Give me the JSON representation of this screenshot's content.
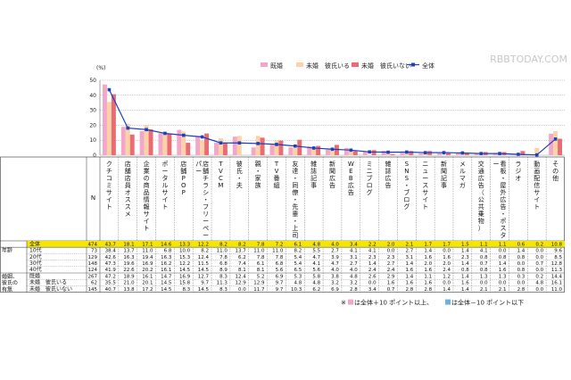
{
  "watermark": "RBBTODAY.COM",
  "chart_data": {
    "type": "bar",
    "title": "",
    "ylabel": "(%)",
    "ylim": [
      0,
      50
    ],
    "yticks": [
      0,
      10,
      20,
      30,
      40,
      50
    ],
    "grid": true,
    "legend_position": "top-right",
    "categories": [
      "クチコミサイト",
      "店舗店員オススメ",
      "企業の商品情報サイト",
      "ポータルサイト",
      "店舗POP",
      "店舗チラシ・フリーペーパー",
      "TVCM",
      "彼氏・夫",
      "親・家族",
      "TV番組",
      "友達・同僚・先輩・上司",
      "雑誌記事",
      "新聞広告",
      "WEB広告",
      "ミニブログ",
      "雑誌広告",
      "SNS・ブログ",
      "ニュースサイト",
      "新聞記事",
      "メルマガ",
      "交通広告（公共乗物）",
      "看板・屋外広告・ポスター",
      "ラジオ",
      "動画配信サイト",
      "その他"
    ],
    "series": [
      {
        "name": "既婚",
        "color": "#f4a6c8",
        "values": [
          47.2,
          18.9,
          16.1,
          14.7,
          16.9,
          12.7,
          8.3,
          12.4,
          5.2,
          6.9,
          5.3,
          5.8,
          3.8,
          4.8,
          2.6,
          2.9,
          1.4,
          1.1,
          1.2,
          1.4,
          1.3,
          1.3,
          0.3,
          0.2,
          14.4
        ]
      },
      {
        "name": "未婚　彼氏いる",
        "color": "#fbd3a6",
        "values": [
          35.5,
          21.0,
          20.1,
          14.5,
          15.8,
          9.7,
          11.3,
          12.9,
          12.9,
          9.7,
          4.8,
          4.8,
          3.2,
          3.2,
          0.0,
          1.6,
          1.6,
          1.6,
          0.0,
          1.6,
          0.0,
          0.0,
          0.0,
          4.8,
          16.1
        ]
      },
      {
        "name": "未婚　彼氏いない",
        "color": "#ec6b72",
        "values": [
          40.7,
          13.8,
          17.2,
          14.5,
          8.3,
          14.5,
          8.3,
          0.0,
          11.7,
          9.7,
          10.3,
          6.2,
          6.9,
          2.8,
          3.4,
          0.7,
          2.8,
          2.8,
          1.4,
          1.4,
          2.1,
          2.1,
          2.8,
          0.0,
          11.0
        ]
      },
      {
        "name": "全体",
        "color": "#1c3fbf",
        "values": [
          43.7,
          18.1,
          17.1,
          14.6,
          13.3,
          12.2,
          8.2,
          8.2,
          7.8,
          7.2,
          6.1,
          4.8,
          4.0,
          3.4,
          2.2,
          2.0,
          2.1,
          1.7,
          1.7,
          1.5,
          1.1,
          1.1,
          0.6,
          0.2,
          10.8
        ]
      }
    ]
  },
  "table": {
    "n_header": "N",
    "groups": [
      {
        "label": "",
        "rows": [
          {
            "label": "全体",
            "n": "474",
            "values": [
              "43.7",
              "18.1",
              "17.1",
              "14.6",
              "13.3",
              "12.2",
              "8.2",
              "8.2",
              "7.8",
              "7.2",
              "6.1",
              "4.8",
              "4.0",
              "3.4",
              "2.2",
              "2.0",
              "2.1",
              "1.7",
              "1.7",
              "1.5",
              "1.1",
              "1.1",
              "0.6",
              "0.2",
              "10.8"
            ]
          }
        ]
      },
      {
        "label": "年齢",
        "rows": [
          {
            "label": "10代",
            "n": "73",
            "values": [
              "38.4",
              "13.7",
              "11.0",
              "6.8",
              "10.0",
              "8.2",
              "11.0",
              "13.7",
              "11.0",
              "11.0",
              "8.2",
              "5.5",
              "2.7",
              "4.1",
              "4.1",
              "0.0",
              "2.7",
              "1.4",
              "0.0",
              "1.4",
              "4.1",
              "0.0",
              "1.4",
              "0.0",
              "9.6"
            ]
          },
          {
            "label": "20代",
            "n": "129",
            "values": [
              "42.6",
              "16.3",
              "19.4",
              "16.3",
              "15.3",
              "12.4",
              "7.8",
              "6.2",
              "7.8",
              "7.8",
              "5.4",
              "4.7",
              "3.9",
              "3.1",
              "2.3",
              "2.3",
              "3.1",
              "1.6",
              "1.6",
              "2.3",
              "0.8",
              "0.8",
              "0.8",
              "0.0",
              "8.5"
            ]
          },
          {
            "label": "30代",
            "n": "148",
            "values": [
              "47.3",
              "19.6",
              "16.9",
              "16.2",
              "12.2",
              "11.5",
              "6.8",
              "7.4",
              "6.1",
              "6.8",
              "5.4",
              "4.1",
              "4.7",
              "2.7",
              "1.4",
              "2.7",
              "1.4",
              "2.0",
              "2.0",
              "1.4",
              "0.7",
              "1.4",
              "0.0",
              "0.7",
              "12.8"
            ]
          },
          {
            "label": "40代",
            "n": "124",
            "values": [
              "41.9",
              "22.6",
              "20.2",
              "16.1",
              "14.5",
              "14.5",
              "8.9",
              "8.1",
              "8.1",
              "5.6",
              "6.5",
              "5.6",
              "4.0",
              "4.0",
              "2.4",
              "2.4",
              "1.6",
              "1.6",
              "2.4",
              "0.8",
              "0.8",
              "1.6",
              "0.8",
              "0.0",
              "11.3"
            ]
          }
        ]
      },
      {
        "label": "婚姻、彼氏の有無",
        "rows": [
          {
            "label": "既婚",
            "n": "267",
            "values": [
              "47.2",
              "18.9",
              "16.1",
              "14.7",
              "16.9",
              "12.7",
              "8.3",
              "12.4",
              "5.2",
              "6.9",
              "5.3",
              "5.8",
              "3.8",
              "4.8",
              "2.6",
              "2.9",
              "1.4",
              "1.1",
              "1.2",
              "1.4",
              "1.3",
              "1.3",
              "0.3",
              "0.2",
              "14.4"
            ]
          },
          {
            "label": "未婚　彼氏いる",
            "n": "62",
            "values": [
              "35.5",
              "21.0",
              "20.1",
              "14.5",
              "15.8",
              "9.7",
              "11.3",
              "12.9",
              "12.9",
              "9.7",
              "4.8",
              "4.8",
              "3.2",
              "3.2",
              "0.0",
              "1.6",
              "1.6",
              "1.6",
              "0.0",
              "1.6",
              "0.0",
              "0.0",
              "0.0",
              "4.8",
              "16.1"
            ]
          },
          {
            "label": "未婚　彼氏いない",
            "n": "145",
            "values": [
              "40.7",
              "13.8",
              "17.2",
              "14.5",
              "8.3",
              "14.5",
              "8.3",
              "0.0",
              "11.7",
              "9.7",
              "10.3",
              "6.2",
              "6.9",
              "2.8",
              "3.4",
              "0.7",
              "2.8",
              "2.8",
              "1.4",
              "1.4",
              "2.1",
              "2.1",
              "2.8",
              "0.0",
              "11.0"
            ]
          }
        ]
      }
    ]
  },
  "footnote": {
    "mark": "※",
    "pink_text": "は全体＋10 ポイント以上、",
    "blue_text": "は全体－10 ポイント以下",
    "pink_color": "#f4a6c8",
    "blue_color": "#6ab0e0"
  },
  "colors": {
    "grid": "#9a9a9a",
    "table_header_bg": "#ffffff",
    "total_row_bg": "#f5e600",
    "line": "#1c3fbf"
  }
}
